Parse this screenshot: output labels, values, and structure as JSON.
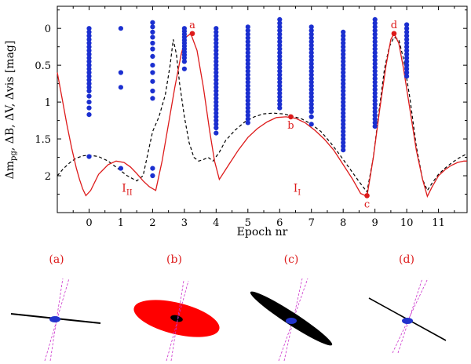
{
  "chart_data": {
    "type": "scatter",
    "xlabel": "Epoch nr",
    "ylabel_parts": [
      "Δm",
      "pg",
      ", ΔB, ΔV, Δvis [mag]"
    ],
    "xlim": [
      -1.0,
      11.9
    ],
    "ylim_inverted": [
      -0.3,
      2.5
    ],
    "xticks": [
      0,
      1,
      2,
      3,
      4,
      5,
      6,
      7,
      8,
      9,
      10,
      11
    ],
    "yticks": [
      0,
      0.5,
      1,
      1.5,
      2
    ],
    "ytick_labels": [
      "0",
      "0.5",
      "1",
      "1.5",
      "2"
    ],
    "observations": {
      "name": "observations",
      "color": "#1b2fd0",
      "columns": [
        {
          "x": 0.0,
          "values": [
            0.0,
            0.05,
            0.1,
            0.15,
            0.2,
            0.25,
            0.3,
            0.35,
            0.4,
            0.45,
            0.5,
            0.55,
            0.6,
            0.65,
            0.7,
            0.75,
            0.8,
            0.85,
            0.92,
            1.0,
            1.08,
            1.17,
            1.74
          ]
        },
        {
          "x": 1.0,
          "values": [
            0.0,
            0.6,
            0.8,
            1.9
          ]
        },
        {
          "x": 2.0,
          "values": [
            -0.08,
            -0.02,
            0.05,
            0.12,
            0.2,
            0.28,
            0.38,
            0.5,
            0.6,
            0.72,
            0.85,
            0.95,
            1.9,
            2.0
          ]
        },
        {
          "x": 3.0,
          "values": [
            0.0,
            0.04,
            0.08,
            0.12,
            0.16,
            0.2,
            0.24,
            0.28,
            0.32,
            0.36,
            0.4,
            0.45,
            0.55
          ]
        },
        {
          "x": 4.0,
          "values": [
            0.0,
            0.05,
            0.1,
            0.15,
            0.2,
            0.25,
            0.3,
            0.35,
            0.4,
            0.45,
            0.5,
            0.55,
            0.6,
            0.65,
            0.7,
            0.75,
            0.8,
            0.85,
            0.9,
            0.95,
            1.0,
            1.05,
            1.1,
            1.15,
            1.2,
            1.25,
            1.3,
            1.35,
            1.42
          ]
        },
        {
          "x": 5.0,
          "values": [
            -0.02,
            0.03,
            0.08,
            0.13,
            0.18,
            0.23,
            0.28,
            0.33,
            0.38,
            0.43,
            0.48,
            0.53,
            0.58,
            0.63,
            0.68,
            0.73,
            0.78,
            0.83,
            0.88,
            0.93,
            0.98,
            1.03,
            1.08,
            1.13,
            1.18,
            1.23,
            1.28
          ]
        },
        {
          "x": 6.0,
          "values": [
            -0.12,
            -0.07,
            -0.02,
            0.03,
            0.08,
            0.13,
            0.18,
            0.23,
            0.28,
            0.33,
            0.38,
            0.43,
            0.48,
            0.53,
            0.58,
            0.63,
            0.68,
            0.73,
            0.78,
            0.83,
            0.88,
            0.93,
            0.98,
            1.03,
            1.08
          ]
        },
        {
          "x": 7.0,
          "values": [
            -0.02,
            0.03,
            0.08,
            0.13,
            0.18,
            0.23,
            0.28,
            0.33,
            0.38,
            0.43,
            0.48,
            0.53,
            0.58,
            0.63,
            0.68,
            0.73,
            0.78,
            0.83,
            0.88,
            0.93,
            0.98,
            1.03,
            1.08,
            1.13,
            1.2,
            1.3
          ]
        },
        {
          "x": 8.0,
          "values": [
            0.05,
            0.1,
            0.15,
            0.2,
            0.25,
            0.3,
            0.35,
            0.4,
            0.45,
            0.5,
            0.55,
            0.6,
            0.65,
            0.7,
            0.75,
            0.8,
            0.85,
            0.9,
            0.95,
            1.0,
            1.05,
            1.1,
            1.15,
            1.2,
            1.25,
            1.3,
            1.35,
            1.4,
            1.45,
            1.5,
            1.55,
            1.6,
            1.65
          ]
        },
        {
          "x": 9.0,
          "values": [
            -0.12,
            -0.07,
            -0.02,
            0.03,
            0.08,
            0.13,
            0.18,
            0.23,
            0.28,
            0.33,
            0.38,
            0.43,
            0.48,
            0.53,
            0.58,
            0.63,
            0.68,
            0.73,
            0.78,
            0.83,
            0.88,
            0.93,
            0.98,
            1.03,
            1.08,
            1.13,
            1.18,
            1.23,
            1.28,
            1.33
          ]
        },
        {
          "x": 10.0,
          "values": [
            -0.05,
            0.0,
            0.05,
            0.1,
            0.15,
            0.2,
            0.25,
            0.3,
            0.35,
            0.4,
            0.45,
            0.5,
            0.55,
            0.6,
            0.65
          ]
        }
      ]
    },
    "model_red": {
      "name": "model (solid red)",
      "color": "#dd1a1a",
      "x": [
        -1.0,
        -0.85,
        -0.7,
        -0.55,
        -0.4,
        -0.3,
        -0.2,
        -0.1,
        0.05,
        0.3,
        0.6,
        0.85,
        1.1,
        1.3,
        1.5,
        1.7,
        1.9,
        2.1,
        2.3,
        2.5,
        2.7,
        2.9,
        3.05,
        3.2,
        3.4,
        3.6,
        3.8,
        3.95,
        4.1,
        4.4,
        4.7,
        5.0,
        5.3,
        5.6,
        5.9,
        6.2,
        6.5,
        6.8,
        7.1,
        7.4,
        7.7,
        8.0,
        8.3,
        8.55,
        8.75,
        8.95,
        9.15,
        9.35,
        9.5,
        9.6,
        9.75,
        9.9,
        10.1,
        10.3,
        10.5,
        10.65,
        10.8,
        11.0,
        11.2,
        11.4,
        11.6,
        11.8,
        11.9
      ],
      "y": [
        0.6,
        0.95,
        1.3,
        1.62,
        1.9,
        2.05,
        2.18,
        2.27,
        2.2,
        1.98,
        1.85,
        1.8,
        1.82,
        1.88,
        1.97,
        2.07,
        2.15,
        2.2,
        1.8,
        1.3,
        0.8,
        0.35,
        0.12,
        0.07,
        0.3,
        0.8,
        1.4,
        1.8,
        2.05,
        1.85,
        1.65,
        1.48,
        1.36,
        1.27,
        1.21,
        1.2,
        1.22,
        1.28,
        1.38,
        1.5,
        1.65,
        1.85,
        2.05,
        2.24,
        2.28,
        1.75,
        1.1,
        0.5,
        0.15,
        0.07,
        0.2,
        0.55,
        1.1,
        1.65,
        2.05,
        2.28,
        2.15,
        2.0,
        1.92,
        1.86,
        1.82,
        1.8,
        1.8
      ]
    },
    "model_black": {
      "name": "model (dashed black)",
      "color": "#000000",
      "x": [
        -1.0,
        -0.8,
        -0.6,
        -0.4,
        -0.2,
        0.0,
        0.3,
        0.6,
        0.9,
        1.2,
        1.5,
        1.7,
        1.85,
        2.0,
        2.2,
        2.4,
        2.55,
        2.65,
        2.75,
        2.85,
        3.0,
        3.15,
        3.3,
        3.45,
        3.6,
        3.75,
        3.9,
        4.1,
        4.3,
        4.6,
        4.9,
        5.2,
        5.5,
        5.8,
        6.1,
        6.4,
        6.7,
        7.0,
        7.3,
        7.6,
        7.9,
        8.2,
        8.5,
        8.75,
        8.95,
        9.15,
        9.3,
        9.45,
        9.6,
        9.75,
        9.9,
        10.1,
        10.3,
        10.5,
        10.65,
        10.8,
        11.0,
        11.2,
        11.4,
        11.6,
        11.9
      ],
      "y": [
        2.0,
        1.9,
        1.82,
        1.76,
        1.73,
        1.72,
        1.74,
        1.8,
        1.9,
        2.0,
        2.07,
        2.0,
        1.7,
        1.4,
        1.2,
        0.9,
        0.5,
        0.15,
        0.35,
        0.75,
        1.2,
        1.55,
        1.75,
        1.8,
        1.78,
        1.75,
        1.8,
        1.68,
        1.52,
        1.38,
        1.27,
        1.2,
        1.16,
        1.15,
        1.16,
        1.19,
        1.23,
        1.3,
        1.4,
        1.55,
        1.72,
        1.9,
        2.08,
        2.22,
        1.75,
        1.05,
        0.55,
        0.25,
        0.12,
        0.15,
        0.42,
        0.95,
        1.6,
        2.05,
        2.2,
        2.1,
        1.98,
        1.9,
        1.83,
        1.77,
        1.7
      ]
    },
    "points": [
      {
        "label": "a",
        "x": 3.25,
        "y": 0.07,
        "label_pos": "above"
      },
      {
        "label": "b",
        "x": 6.35,
        "y": 1.2,
        "label_pos": "below"
      },
      {
        "label": "c",
        "x": 8.75,
        "y": 2.27,
        "label_pos": "below"
      },
      {
        "label": "d",
        "x": 9.6,
        "y": 0.07,
        "label_pos": "above"
      }
    ],
    "annotations": [
      {
        "text": "I",
        "sub": "II",
        "x": 1.2,
        "y": 2.22
      },
      {
        "text": "I",
        "sub": "I",
        "x": 6.55,
        "y": 2.22
      }
    ]
  },
  "panels": [
    {
      "label": "(a)",
      "disk": "thin-line"
    },
    {
      "label": "(b)",
      "disk": "red-ellipse"
    },
    {
      "label": "(c)",
      "disk": "black-ellipse"
    },
    {
      "label": "(d)",
      "disk": "tilted-line"
    }
  ],
  "colors": {
    "points": "#1b2fd0",
    "red": "#dd1a1a",
    "black": "#000000",
    "magenta": "#cc33cc",
    "star": "#2233cc"
  }
}
